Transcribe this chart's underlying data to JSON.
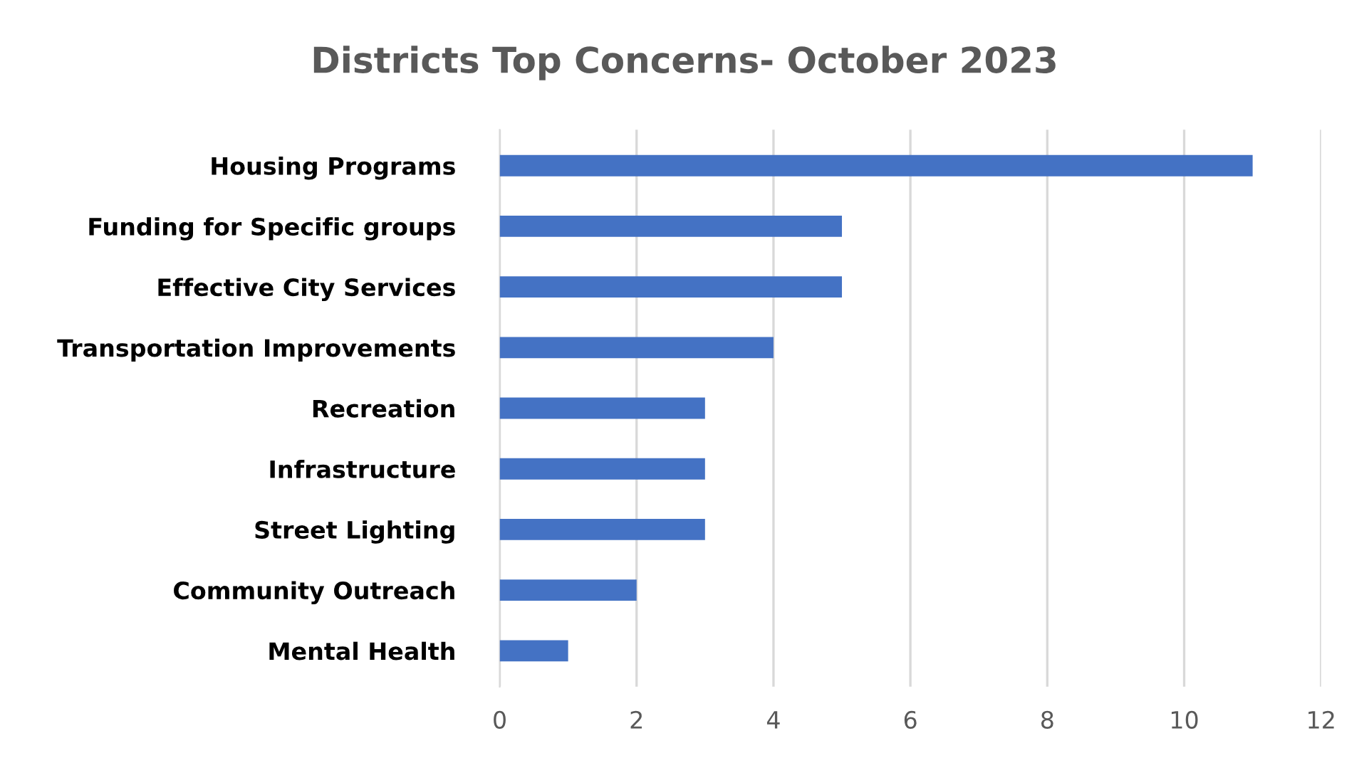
{
  "chart_data": {
    "type": "bar",
    "orientation": "horizontal",
    "title": "Districts Top Concerns- October 2023",
    "categories": [
      "Housing Programs",
      "Funding for Specific groups",
      "Effective City Services",
      "Transportation Improvements",
      "Recreation",
      "Infrastructure",
      "Street Lighting",
      "Community Outreach",
      "Mental Health"
    ],
    "values": [
      11,
      5,
      5,
      4,
      3,
      3,
      3,
      2,
      1
    ],
    "color": "#4472c4",
    "xlim": [
      0,
      12
    ],
    "xticks": [
      0,
      2,
      4,
      6,
      8,
      10,
      12
    ],
    "grid": "x"
  }
}
